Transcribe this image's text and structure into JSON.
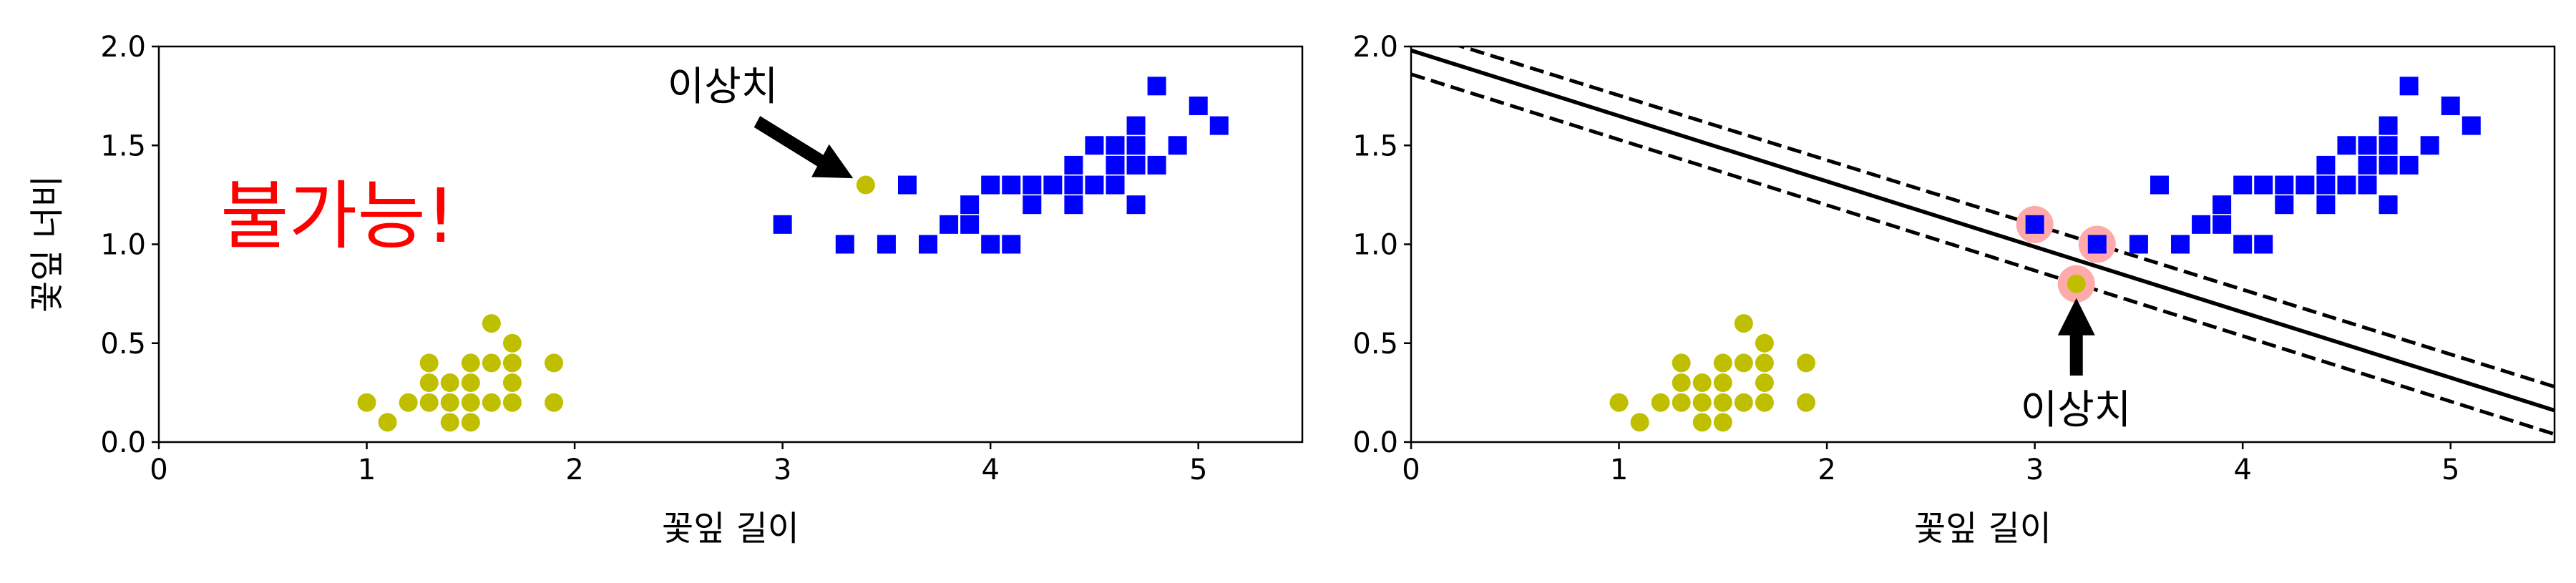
{
  "chart_data": [
    {
      "type": "scatter",
      "xlabel": "꽃잎 길이",
      "ylabel": "꽃잎 너비",
      "xlim": [
        0,
        5.5
      ],
      "ylim": [
        0,
        2.0
      ],
      "xticks": [
        "0",
        "1",
        "2",
        "3",
        "4",
        "5"
      ],
      "yticks": [
        "0.0",
        "0.5",
        "1.0",
        "1.5",
        "2.0"
      ],
      "grid": false,
      "series": [
        {
          "marker": "circle",
          "color": "#bfbf00",
          "points": [
            [
              1.0,
              0.2
            ],
            [
              1.1,
              0.1
            ],
            [
              1.2,
              0.2
            ],
            [
              1.3,
              0.2
            ],
            [
              1.3,
              0.3
            ],
            [
              1.3,
              0.4
            ],
            [
              1.4,
              0.1
            ],
            [
              1.4,
              0.2
            ],
            [
              1.4,
              0.3
            ],
            [
              1.5,
              0.1
            ],
            [
              1.5,
              0.2
            ],
            [
              1.5,
              0.3
            ],
            [
              1.5,
              0.4
            ],
            [
              1.6,
              0.2
            ],
            [
              1.6,
              0.4
            ],
            [
              1.6,
              0.6
            ],
            [
              1.7,
              0.2
            ],
            [
              1.7,
              0.3
            ],
            [
              1.7,
              0.4
            ],
            [
              1.7,
              0.5
            ],
            [
              1.9,
              0.2
            ],
            [
              1.9,
              0.4
            ],
            [
              3.4,
              1.3
            ]
          ]
        },
        {
          "marker": "square",
          "color": "#0000ff",
          "points": [
            [
              3.0,
              1.1
            ],
            [
              3.3,
              1.0
            ],
            [
              3.5,
              1.0
            ],
            [
              3.6,
              1.3
            ],
            [
              3.7,
              1.0
            ],
            [
              3.8,
              1.1
            ],
            [
              3.9,
              1.1
            ],
            [
              3.9,
              1.2
            ],
            [
              4.0,
              1.0
            ],
            [
              4.0,
              1.3
            ],
            [
              4.1,
              1.0
            ],
            [
              4.1,
              1.3
            ],
            [
              4.2,
              1.2
            ],
            [
              4.2,
              1.3
            ],
            [
              4.3,
              1.3
            ],
            [
              4.4,
              1.2
            ],
            [
              4.4,
              1.3
            ],
            [
              4.4,
              1.4
            ],
            [
              4.5,
              1.3
            ],
            [
              4.5,
              1.5
            ],
            [
              4.6,
              1.3
            ],
            [
              4.6,
              1.4
            ],
            [
              4.6,
              1.5
            ],
            [
              4.7,
              1.2
            ],
            [
              4.7,
              1.4
            ],
            [
              4.7,
              1.5
            ],
            [
              4.7,
              1.6
            ],
            [
              4.8,
              1.4
            ],
            [
              4.8,
              1.8
            ],
            [
              4.9,
              1.5
            ],
            [
              5.0,
              1.7
            ],
            [
              5.1,
              1.6
            ]
          ]
        }
      ],
      "annotations": [
        {
          "text": "이상치",
          "xy": [
            3.4,
            1.3
          ],
          "xytext": [
            2.6,
            1.75
          ]
        },
        {
          "text": "불가능!",
          "xy": [
            1.0,
            1.1
          ],
          "color": "#ff0000"
        }
      ]
    },
    {
      "type": "scatter",
      "xlabel": "꽃잎 길이",
      "ylabel": "",
      "xlim": [
        0,
        5.5
      ],
      "ylim": [
        0,
        2.0
      ],
      "xticks": [
        "0",
        "1",
        "2",
        "3",
        "4",
        "5"
      ],
      "yticks": [
        "0.0",
        "0.5",
        "1.0",
        "1.5",
        "2.0"
      ],
      "grid": false,
      "series": [
        {
          "marker": "circle",
          "color": "#bfbf00",
          "points": [
            [
              1.0,
              0.2
            ],
            [
              1.1,
              0.1
            ],
            [
              1.2,
              0.2
            ],
            [
              1.3,
              0.2
            ],
            [
              1.3,
              0.3
            ],
            [
              1.3,
              0.4
            ],
            [
              1.4,
              0.1
            ],
            [
              1.4,
              0.2
            ],
            [
              1.4,
              0.3
            ],
            [
              1.5,
              0.1
            ],
            [
              1.5,
              0.2
            ],
            [
              1.5,
              0.3
            ],
            [
              1.5,
              0.4
            ],
            [
              1.6,
              0.2
            ],
            [
              1.6,
              0.4
            ],
            [
              1.6,
              0.6
            ],
            [
              1.7,
              0.2
            ],
            [
              1.7,
              0.3
            ],
            [
              1.7,
              0.4
            ],
            [
              1.7,
              0.5
            ],
            [
              1.9,
              0.2
            ],
            [
              1.9,
              0.4
            ],
            [
              3.2,
              0.8
            ]
          ]
        },
        {
          "marker": "square",
          "color": "#0000ff",
          "points": [
            [
              3.0,
              1.1
            ],
            [
              3.3,
              1.0
            ],
            [
              3.5,
              1.0
            ],
            [
              3.6,
              1.3
            ],
            [
              3.7,
              1.0
            ],
            [
              3.8,
              1.1
            ],
            [
              3.9,
              1.1
            ],
            [
              3.9,
              1.2
            ],
            [
              4.0,
              1.0
            ],
            [
              4.0,
              1.3
            ],
            [
              4.1,
              1.0
            ],
            [
              4.1,
              1.3
            ],
            [
              4.2,
              1.2
            ],
            [
              4.2,
              1.3
            ],
            [
              4.3,
              1.3
            ],
            [
              4.4,
              1.2
            ],
            [
              4.4,
              1.3
            ],
            [
              4.4,
              1.4
            ],
            [
              4.5,
              1.3
            ],
            [
              4.5,
              1.5
            ],
            [
              4.6,
              1.3
            ],
            [
              4.6,
              1.4
            ],
            [
              4.6,
              1.5
            ],
            [
              4.7,
              1.2
            ],
            [
              4.7,
              1.4
            ],
            [
              4.7,
              1.5
            ],
            [
              4.7,
              1.6
            ],
            [
              4.8,
              1.4
            ],
            [
              4.8,
              1.8
            ],
            [
              4.9,
              1.5
            ],
            [
              5.0,
              1.7
            ],
            [
              5.1,
              1.6
            ]
          ]
        }
      ],
      "lines": [
        {
          "style": "solid",
          "color": "#000000",
          "points": [
            [
              0,
              1.98
            ],
            [
              5.5,
              0.16
            ]
          ]
        },
        {
          "style": "dashed",
          "color": "#000000",
          "points": [
            [
              0,
              2.08
            ],
            [
              5.5,
              0.28
            ]
          ]
        },
        {
          "style": "dashed",
          "color": "#000000",
          "points": [
            [
              0,
              1.86
            ],
            [
              5.5,
              0.04
            ]
          ]
        }
      ],
      "support_vectors": {
        "color": "#ffaaaa",
        "points": [
          [
            3.0,
            1.1
          ],
          [
            3.3,
            1.0
          ],
          [
            3.2,
            0.8
          ]
        ]
      },
      "annotations": [
        {
          "text": "이상치",
          "xy": [
            3.2,
            0.8
          ],
          "xytext": [
            3.2,
            0.15
          ]
        }
      ]
    }
  ]
}
